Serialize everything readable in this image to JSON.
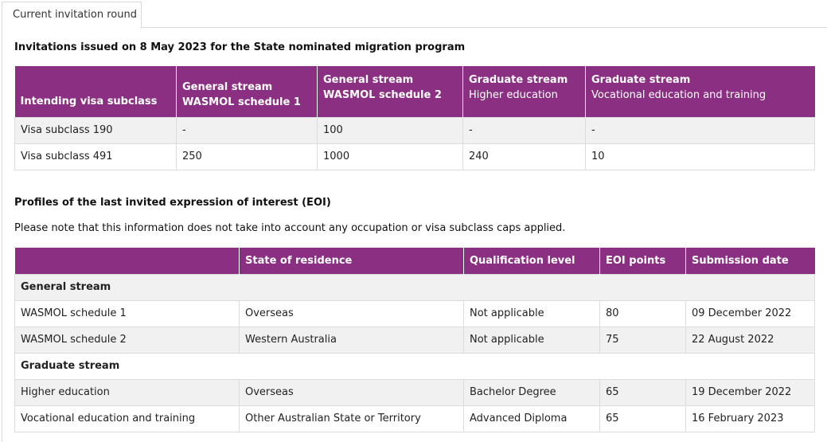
{
  "tab": {
    "label": "Current invitation round"
  },
  "section1": {
    "title": "Invitations issued on 8 May 2023 for the State nominated migration program",
    "headers": [
      {
        "main": "Intending visa subclass",
        "sub": ""
      },
      {
        "main": "General stream",
        "sub": "WASMOL schedule 1"
      },
      {
        "main": "General stream",
        "sub": "WASMOL schedule 2"
      },
      {
        "main": "Graduate stream",
        "sub": "Higher education"
      },
      {
        "main": "Graduate stream",
        "sub": "Vocational education and training"
      }
    ],
    "rows": [
      [
        "Visa subclass 190",
        "-",
        "100",
        "-",
        "-"
      ],
      [
        "Visa subclass 491",
        "250",
        "1000",
        "240",
        "10"
      ]
    ]
  },
  "section2": {
    "title": "Profiles of the last invited expression of interest (EOI)",
    "note": "Please note that this information does not take into account any occupation or visa subclass caps applied.",
    "headers": [
      "",
      "State of residence",
      "Qualification level",
      "EOI points",
      "Submission date"
    ],
    "groups": [
      {
        "name": "General stream",
        "rows": [
          [
            "WASMOL schedule 1",
            "Overseas",
            "Not applicable",
            "80",
            "09 December 2022"
          ],
          [
            "WASMOL schedule 2",
            "Western Australia",
            "Not applicable",
            "75",
            "22 August 2022"
          ]
        ]
      },
      {
        "name": "Graduate stream",
        "rows": [
          [
            "Higher education",
            "Overseas",
            "Bachelor Degree",
            "65",
            "19 December 2022"
          ],
          [
            "Vocational education and training",
            "Other Australian State or Territory",
            "Advanced Diploma",
            "65",
            "16 February 2023"
          ]
        ]
      }
    ]
  },
  "colors": {
    "header_bg": "#8b2f83",
    "row_alt": "#f1f1f1"
  }
}
